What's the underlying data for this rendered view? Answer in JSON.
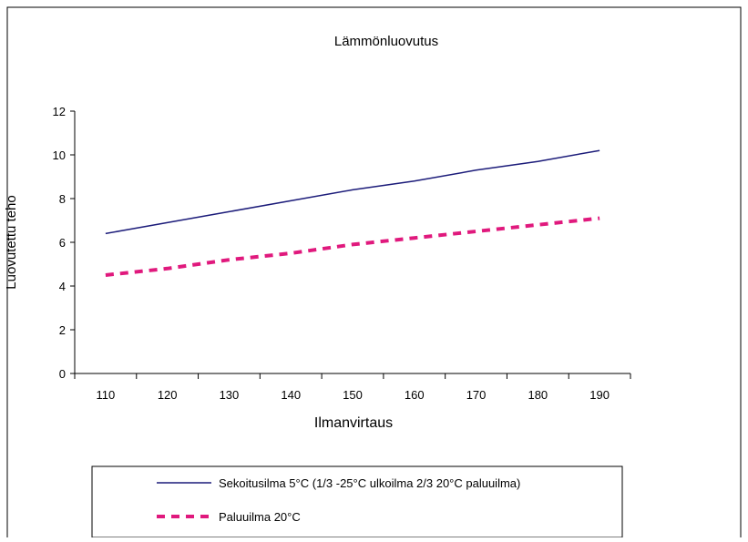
{
  "chart_data": {
    "type": "line",
    "title": "Lämmönluovutus",
    "xlabel": "Ilmanvirtaus",
    "ylabel": "Luovutettu teho",
    "x": [
      110,
      120,
      130,
      140,
      150,
      160,
      170,
      180,
      190
    ],
    "xticks": [
      "110",
      "120",
      "130",
      "140",
      "150",
      "160",
      "170",
      "180",
      "190"
    ],
    "yticks": [
      "0",
      "2",
      "4",
      "6",
      "8",
      "10",
      "12"
    ],
    "ylim": [
      0,
      12
    ],
    "grid": false,
    "legend_position": "bottom",
    "series": [
      {
        "name": "Sekoitusilma 5°C (1/3 -25°C ulkoilma 2/3 20°C paluuilma)",
        "values": [
          6.4,
          6.9,
          7.4,
          7.9,
          8.4,
          8.8,
          9.3,
          9.7,
          10.2
        ],
        "color": "#1c1c7a",
        "style": "solid"
      },
      {
        "name": "Paluuilma 20°C",
        "values": [
          4.5,
          4.8,
          5.2,
          5.5,
          5.9,
          6.2,
          6.5,
          6.8,
          7.1
        ],
        "color": "#e0197d",
        "style": "dashed"
      }
    ]
  }
}
